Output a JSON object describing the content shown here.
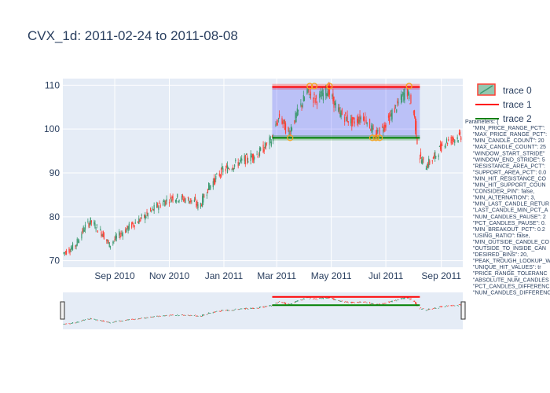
{
  "title": "CVX_1d: 2011-02-24 to 2011-08-08",
  "chart_data": {
    "type": "candlestick",
    "title": "CVX_1d: 2011-02-24 to 2011-08-08",
    "xlabel": "",
    "ylabel": "",
    "x_range": [
      "2010-07-05",
      "2011-09-25"
    ],
    "ylim": [
      68.5,
      111.5
    ],
    "y_ticks": [
      70,
      80,
      90,
      100,
      110
    ],
    "x_ticks": [
      {
        "date": "2010-09-01",
        "label": "Sep 2010"
      },
      {
        "date": "2010-11-01",
        "label": "Nov 2010"
      },
      {
        "date": "2011-01-01",
        "label": "Jan 2011"
      },
      {
        "date": "2011-03-01",
        "label": "Mar 2011"
      },
      {
        "date": "2011-05-01",
        "label": "May 2011"
      },
      {
        "date": "2011-07-01",
        "label": "Jul 2011"
      },
      {
        "date": "2011-09-01",
        "label": "Sep 2011"
      }
    ],
    "price_path": [
      [
        "2010-07-05",
        71.5
      ],
      [
        "2010-07-20",
        73.5
      ],
      [
        "2010-07-30",
        77.5
      ],
      [
        "2010-08-06",
        79.0
      ],
      [
        "2010-08-20",
        76.0
      ],
      [
        "2010-08-27",
        73.5
      ],
      [
        "2010-09-05",
        75.5
      ],
      [
        "2010-09-20",
        78.0
      ],
      [
        "2010-10-05",
        80.0
      ],
      [
        "2010-10-20",
        82.5
      ],
      [
        "2010-11-05",
        84.5
      ],
      [
        "2010-11-20",
        84.0
      ],
      [
        "2010-11-30",
        83.5
      ],
      [
        "2010-12-05",
        82.0
      ],
      [
        "2010-12-15",
        86.5
      ],
      [
        "2010-12-31",
        90.5
      ],
      [
        "2011-01-20",
        92.5
      ],
      [
        "2011-02-10",
        94.5
      ],
      [
        "2011-02-24",
        97.5
      ],
      [
        "2011-03-05",
        103.0
      ],
      [
        "2011-03-15",
        99.0
      ],
      [
        "2011-03-25",
        103.5
      ],
      [
        "2011-04-05",
        108.5
      ],
      [
        "2011-04-15",
        106.5
      ],
      [
        "2011-04-28",
        109.0
      ],
      [
        "2011-05-10",
        104.0
      ],
      [
        "2011-05-25",
        101.5
      ],
      [
        "2011-06-08",
        103.0
      ],
      [
        "2011-06-20",
        98.5
      ],
      [
        "2011-07-01",
        101.0
      ],
      [
        "2011-07-15",
        105.5
      ],
      [
        "2011-07-25",
        109.0
      ],
      [
        "2011-08-02",
        104.0
      ],
      [
        "2011-08-08",
        94.0
      ],
      [
        "2011-08-15",
        91.5
      ],
      [
        "2011-08-25",
        93.5
      ],
      [
        "2011-09-05",
        97.0
      ],
      [
        "2011-09-25",
        98.5
      ]
    ],
    "series": [
      {
        "name": "trace 0",
        "kind": "candlestick",
        "increasing_color": "#3d9970",
        "decreasing_color": "#ff4136"
      },
      {
        "name": "trace 1",
        "kind": "resistance",
        "value": 109.6,
        "x_start": "2011-02-24",
        "x_end": "2011-08-08",
        "color": "#ff0000"
      },
      {
        "name": "trace 2",
        "kind": "support",
        "value": 98.0,
        "x_start": "2011-02-24",
        "x_end": "2011-08-08",
        "color": "#008000"
      }
    ],
    "range_band": {
      "y0": 98.0,
      "y1": 109.6,
      "x_start": "2011-02-24",
      "x_end": "2011-08-08",
      "color": "#0000ff"
    },
    "resistance_band": {
      "y0": 109.0,
      "y1": 110.3,
      "color": "#ff0000"
    },
    "support_band": {
      "y0": 97.4,
      "y1": 98.6,
      "color": "#008000"
    },
    "resistance_hits": [
      {
        "date": "2011-04-07",
        "price": 109.8
      },
      {
        "date": "2011-04-12",
        "price": 109.8
      },
      {
        "date": "2011-04-29",
        "price": 109.8
      },
      {
        "date": "2011-07-27",
        "price": 109.8
      }
    ],
    "support_hits": [
      {
        "date": "2011-03-16",
        "price": 98.0
      },
      {
        "date": "2011-06-16",
        "price": 98.0
      },
      {
        "date": "2011-06-20",
        "price": 98.0
      },
      {
        "date": "2011-06-24",
        "price": 98.0
      }
    ],
    "legend_position": "top-right"
  },
  "legend": {
    "items": [
      {
        "label": "trace 0"
      },
      {
        "label": "trace 1"
      },
      {
        "label": "trace 2"
      }
    ]
  },
  "parameters": {
    "lines": [
      "Parameters: {",
      "\"MIN_PRICE_RANGE_PCT\": ",
      "\"MAX_PRICE_RANGE_PCT\": ",
      "\"MIN_CANDLE_COUNT\": 20",
      "\"MAX_CANDLE_COUNT\": 25",
      "\"WINDOW_START_STRIDE\"",
      "\"WINDOW_END_STRIDE\": 5",
      "\"RESISTANCE_AREA_PCT\":",
      "\"SUPPORT_AREA_PCT\": 0.0",
      "\"MIN_HIT_RESISTANCE_CO",
      "\"MIN_HIT_SUPPORT_COUN",
      "\"CONSIDER_PIN\": false,",
      "\"MIN_ALTERNATION\": 3,",
      "\"MIN_LAST_CANDLE_RETUR",
      "\"LAST_CANDLE_MIN_PCT_A",
      "\"NUM_CANDLES_PAUSE\": 2",
      "\"PCT_CANDLES_PAUSE\": 0.",
      "\"MIN_BREAKOUT_PCT\": 0.2",
      "\"USING_RATIO\": false,",
      "\"MIN_OUTSIDE_CANDLE_CO",
      "\"OUTSIDE_TO_INSIDE_CAN",
      "\"DESIRED_BINS\": 20,",
      "\"PEAK_TROUGH_LOOKUP_W",
      "\"UNIQUE_HIT_VALUES\": tr",
      "\"PRICE_RANGE_TOLERANC",
      "\"ABSOLUTE_NUM_CANDLES",
      "\"PCT_CANDLES_DIFFERENC",
      "\"NUM_CANDLES_DIFFERENC"
    ]
  },
  "colors": {
    "plot_bg": "#e5ecf6",
    "grid": "#ffffff",
    "text": "#2a3f5f",
    "increasing": "#3d9970",
    "decreasing": "#ff4136",
    "resistance": "#ff0000",
    "support": "#008000",
    "band": "#0000ff",
    "hit_marker": "#f5a623"
  }
}
